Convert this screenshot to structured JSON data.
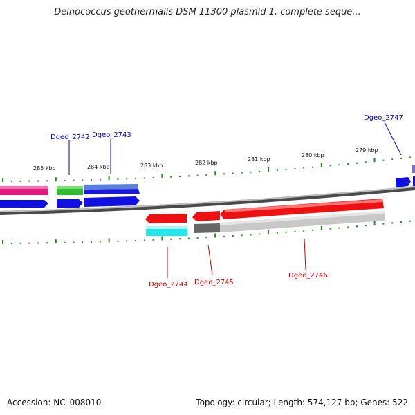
{
  "title": "Deinococcus geothermalis DSM 11300 plasmid 1, complete seque...",
  "footer": {
    "accession": "Accession: NC_008010",
    "summary": "Topology: circular; Length: 574,127 bp; Genes: 522"
  },
  "colors": {
    "plus_label": "#0000bb",
    "minus_label": "#cc0000",
    "tick": "#228822",
    "backbone": "#888888"
  },
  "scale_labels": [
    "285 kbp",
    "284 kbp",
    "283 kbp",
    "282 kbp",
    "281 kbp",
    "280 kbp",
    "279 kbp"
  ],
  "gene_labels": {
    "plus": [
      "Dgeo_2742",
      "Dgeo_2743",
      "Dgeo_2747"
    ],
    "minus": [
      "Dgeo_2744",
      "Dgeo_2745",
      "Dgeo_2746"
    ]
  }
}
